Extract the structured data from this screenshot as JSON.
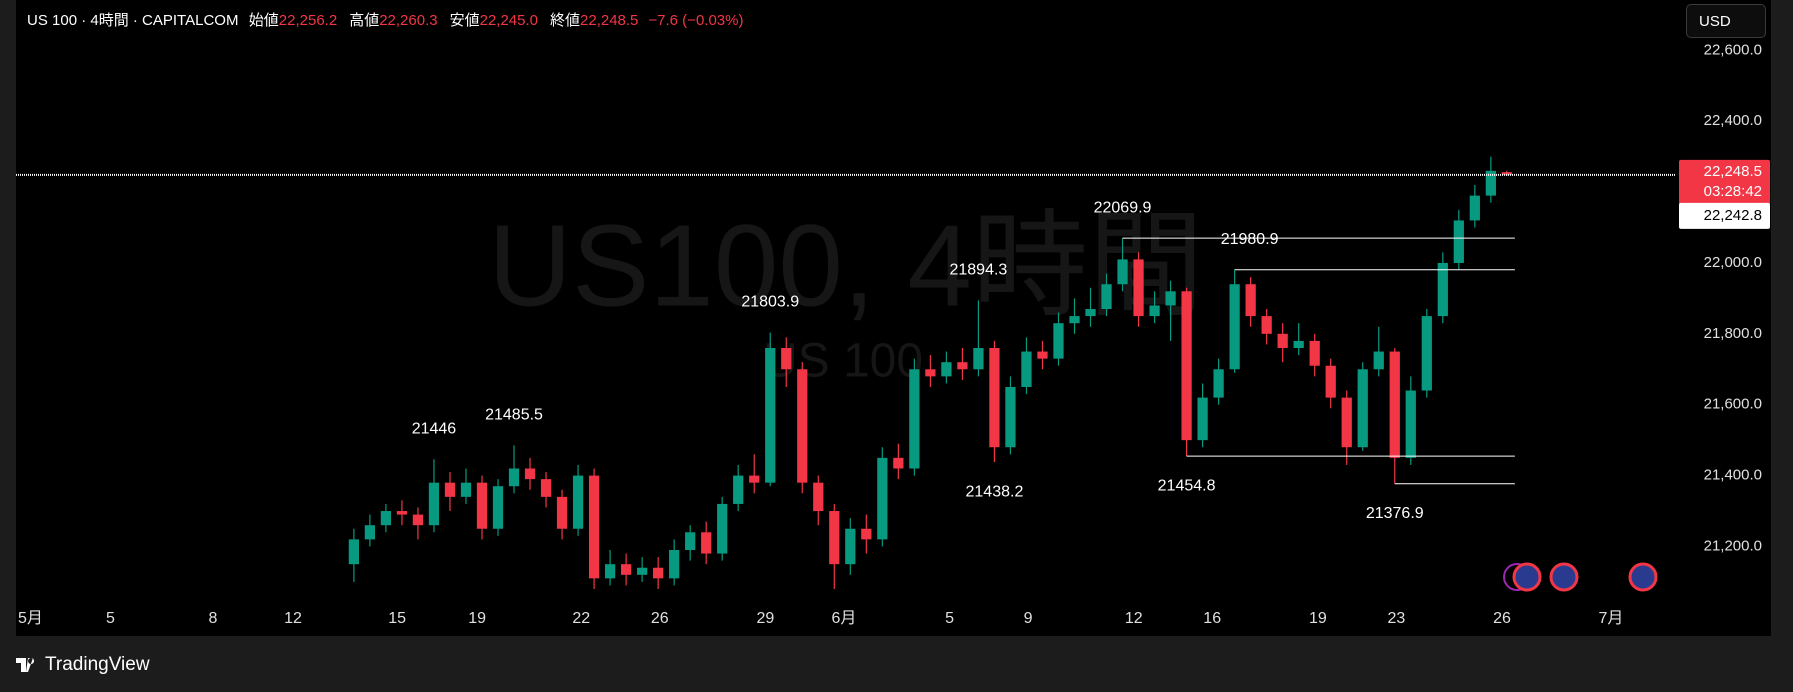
{
  "header": {
    "symbol": "US 100 · 4時間 · CAPITALCOM",
    "fields": [
      {
        "label": "始値",
        "value": "22,256.2"
      },
      {
        "label": "高値",
        "value": "22,260.3"
      },
      {
        "label": "安値",
        "value": "22,245.0"
      },
      {
        "label": "終値",
        "value": "22,248.5"
      }
    ],
    "change": "−7.6 (−0.03%)"
  },
  "currency": "USD",
  "brand": "TradingView",
  "chart_data": {
    "type": "candlestick",
    "watermark": "US100, 4時間",
    "watermark_sub": "US 100",
    "up_color": "#089981",
    "down_color": "#f23645",
    "open": [
      21150,
      21220,
      21260,
      21300,
      21290,
      21260,
      21380,
      21340,
      21380,
      21250,
      21370,
      21420,
      21390,
      21340,
      21250,
      21400,
      21110,
      21150,
      21120,
      21140,
      21110,
      21190,
      21240,
      21180,
      21320,
      21400,
      21380,
      21760,
      21700,
      21380,
      21300,
      21150,
      21250,
      21220,
      21450,
      21420,
      21700,
      21680,
      21720,
      21700,
      21760,
      21480,
      21650,
      21750,
      21730,
      21830,
      21850,
      21870,
      21940,
      22010,
      21850,
      21880,
      21920,
      21500,
      21620,
      21700,
      21940,
      21850,
      21800,
      21760,
      21780,
      21710,
      21620,
      21480,
      21700,
      21750,
      21450,
      21640,
      21850,
      22000,
      22120,
      22190,
      22256.2
    ],
    "high": [
      21250,
      21290,
      21320,
      21330,
      21310,
      21446,
      21410,
      21420,
      21400,
      21390,
      21485.5,
      21450,
      21410,
      21360,
      21430,
      21420,
      21190,
      21180,
      21170,
      21170,
      21220,
      21260,
      21270,
      21340,
      21430,
      21460,
      21803.9,
      21790,
      21720,
      21400,
      21320,
      21280,
      21290,
      21480,
      21490,
      21730,
      21740,
      21750,
      21760,
      21894.3,
      21780,
      21680,
      21790,
      21780,
      21860,
      21900,
      21930,
      21970,
      22069.9,
      22030,
      21920,
      21950,
      21930,
      21660,
      21730,
      21980.9,
      21960,
      21870,
      21830,
      21830,
      21800,
      21730,
      21640,
      21720,
      21820,
      21760,
      21680,
      21870,
      22030,
      22150,
      22220,
      22300,
      22260.3
    ],
    "low": [
      21100,
      21200,
      21240,
      21260,
      21220,
      21240,
      21300,
      21320,
      21220,
      21230,
      21350,
      21360,
      21310,
      21220,
      21230,
      21080,
      21090,
      21090,
      21100,
      21080,
      21090,
      21160,
      21150,
      21160,
      21300,
      21350,
      21370,
      21650,
      21350,
      21260,
      21080,
      21120,
      21180,
      21200,
      21390,
      21400,
      21650,
      21660,
      21670,
      21680,
      21438.2,
      21460,
      21630,
      21700,
      21710,
      21800,
      21820,
      21850,
      21920,
      21820,
      21830,
      21780,
      21454.8,
      21480,
      21600,
      21690,
      21820,
      21770,
      21720,
      21740,
      21680,
      21590,
      21430,
      21470,
      21680,
      21376.9,
      21430,
      21620,
      21830,
      21980,
      22100,
      22170,
      22245.0
    ],
    "close": [
      21220,
      21260,
      21300,
      21290,
      21260,
      21380,
      21340,
      21380,
      21250,
      21370,
      21420,
      21390,
      21340,
      21250,
      21400,
      21110,
      21150,
      21120,
      21140,
      21110,
      21190,
      21240,
      21180,
      21320,
      21400,
      21380,
      21760,
      21700,
      21380,
      21300,
      21150,
      21250,
      21220,
      21450,
      21420,
      21700,
      21680,
      21720,
      21700,
      21760,
      21480,
      21650,
      21750,
      21730,
      21830,
      21850,
      21870,
      21940,
      22010,
      21850,
      21880,
      21920,
      21500,
      21620,
      21700,
      21940,
      21850,
      21800,
      21760,
      21780,
      21710,
      21620,
      21480,
      21700,
      21750,
      21450,
      21640,
      21850,
      22000,
      22120,
      22190,
      22260,
      22248.5
    ],
    "xlim": [
      -21.1,
      82.5
    ],
    "xticks": [
      {
        "value": -20.2,
        "label": "5月"
      },
      {
        "value": -15.2,
        "label": "5"
      },
      {
        "value": -8.8,
        "label": "8"
      },
      {
        "value": -3.8,
        "label": "12"
      },
      {
        "value": 2.7,
        "label": "15"
      },
      {
        "value": 7.7,
        "label": "19"
      },
      {
        "value": 14.2,
        "label": "22"
      },
      {
        "value": 19.1,
        "label": "26"
      },
      {
        "value": 25.7,
        "label": "29"
      },
      {
        "value": 30.6,
        "label": "6月"
      },
      {
        "value": 37.2,
        "label": "5"
      },
      {
        "value": 42.1,
        "label": "9"
      },
      {
        "value": 48.7,
        "label": "12"
      },
      {
        "value": 53.6,
        "label": "16"
      },
      {
        "value": 60.2,
        "label": "19"
      },
      {
        "value": 65.1,
        "label": "23"
      },
      {
        "value": 71.7,
        "label": "26"
      },
      {
        "value": 78.5,
        "label": "7月"
      }
    ],
    "ylim": [
      21032,
      22742
    ],
    "yticks": [
      {
        "value": 21200,
        "label": "21,200.0"
      },
      {
        "value": 21400,
        "label": "21,400.0"
      },
      {
        "value": 21600,
        "label": "21,600.0"
      },
      {
        "value": 21800,
        "label": "21,800.0"
      },
      {
        "value": 22000,
        "label": "22,000.0"
      },
      {
        "value": 22200,
        "label": "22,200.0"
      },
      {
        "value": 22400,
        "label": "22,400.0"
      },
      {
        "value": 22600,
        "label": "22,600.0"
      }
    ],
    "last_price": {
      "value": 22248.5,
      "label": "22,248.5"
    },
    "countdown": "03:28:42",
    "bid": {
      "value": 22242.8,
      "label": "22,242.8"
    },
    "annotations": [
      {
        "value": 21446,
        "x": 5,
        "position": "above",
        "line": false
      },
      {
        "value": 21485.5,
        "x": 10,
        "position": "above",
        "line": false
      },
      {
        "value": 21803.9,
        "x": 26,
        "position": "above",
        "line": false
      },
      {
        "value": 21894.3,
        "x": 39,
        "position": "above",
        "line": false
      },
      {
        "value": 21438.2,
        "x": 40,
        "position": "below",
        "line": false
      },
      {
        "value": 22069.9,
        "x": 48,
        "position": "above",
        "line": true
      },
      {
        "value": 21454.8,
        "x": 52,
        "position": "below",
        "line": true
      },
      {
        "value": 21980.9,
        "x": 55,
        "position": "above",
        "line": true
      },
      {
        "value": 21376.9,
        "x": 65,
        "position": "below",
        "line": true
      }
    ]
  }
}
